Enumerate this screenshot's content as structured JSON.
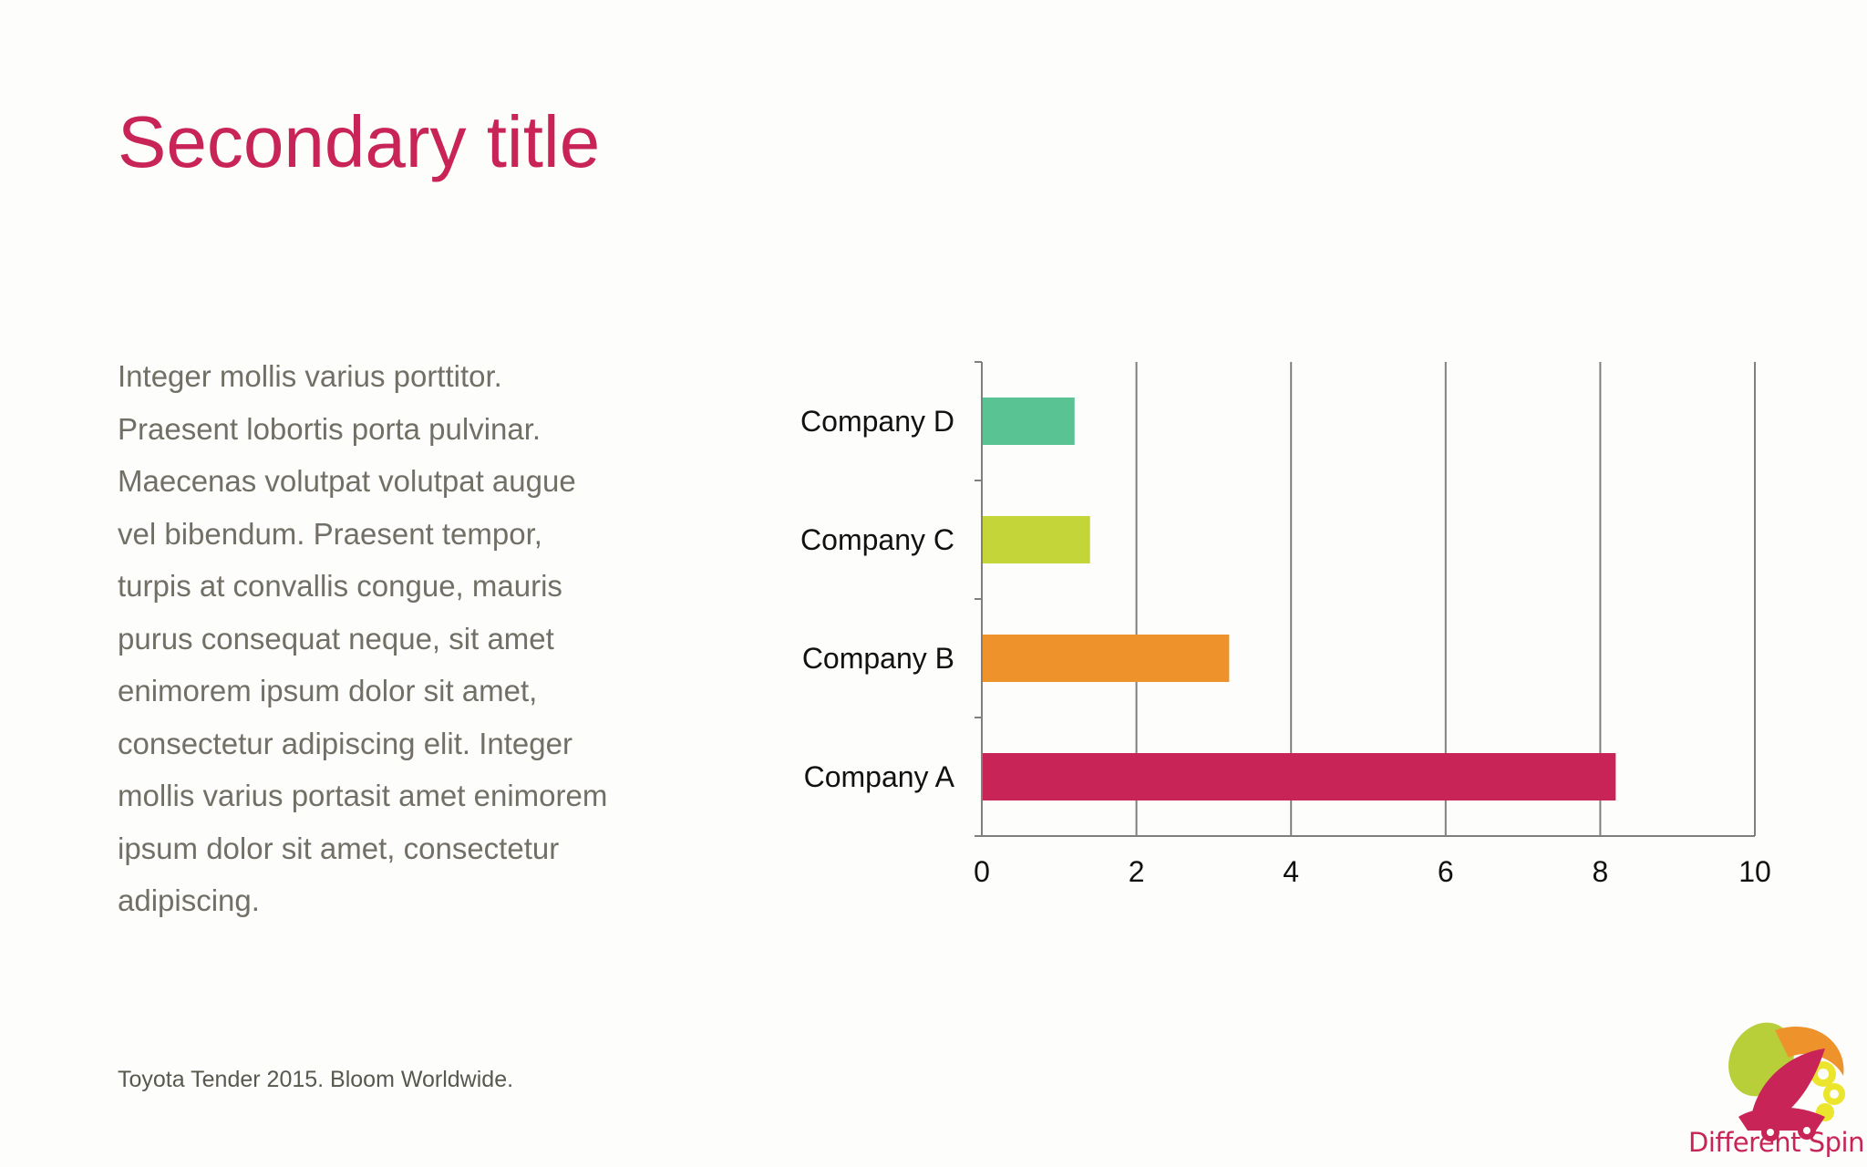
{
  "slide": {
    "title": "Secondary title",
    "body_lines": [
      "Integer mollis varius porttitor.",
      "Praesent lobortis porta pulvinar.",
      "Maecenas volutpat volutpat augue",
      "vel bibendum.  Praesent tempor,",
      "turpis at convallis congue, mauris",
      "purus consequat neque, sit amet",
      "enimorem ipsum dolor sit amet,",
      "consectetur adipiscing elit. Integer",
      "mollis varius portasit amet enimorem",
      "ipsum dolor sit amet, consectetur",
      "adipiscing."
    ],
    "footer": "Toyota Tender 2015. Bloom Worldwide.",
    "logo_text": "Different Spin"
  },
  "colors": {
    "accent": "#c92457",
    "body_text": "#727066",
    "gridline": "#7f7f7f"
  },
  "chart_data": {
    "type": "bar",
    "orientation": "horizontal",
    "title": "",
    "xlabel": "",
    "ylabel": "",
    "categories": [
      "Company D",
      "Company C",
      "Company B",
      "Company A"
    ],
    "values": [
      1.2,
      1.4,
      3.2,
      8.2
    ],
    "colors": [
      "#5ac394",
      "#c4d53a",
      "#ee922b",
      "#c92457"
    ],
    "xlim": [
      0,
      10
    ],
    "xticks": [
      "0",
      "2",
      "4",
      "6",
      "8",
      "10"
    ],
    "grid": true,
    "legend": "none"
  }
}
